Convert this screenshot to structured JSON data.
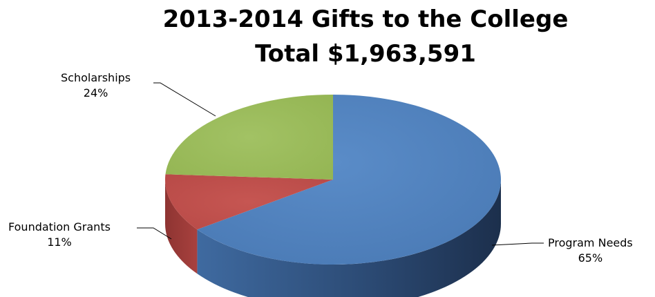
{
  "chart_data": {
    "type": "pie",
    "style": "3d",
    "title": "2013-2014 Gifts to the College",
    "subtitle": "Total $1,963,591",
    "slices": [
      {
        "label": "Program Needs",
        "percent_label": "65%",
        "value": 65,
        "color": "#4F81BD"
      },
      {
        "label": "Foundation Grants",
        "percent_label": "11%",
        "value": 11,
        "color": "#C0504D"
      },
      {
        "label": "Scholarships",
        "percent_label": "24%",
        "value": 24,
        "color": "#9BBB59"
      }
    ],
    "legend": "none"
  }
}
